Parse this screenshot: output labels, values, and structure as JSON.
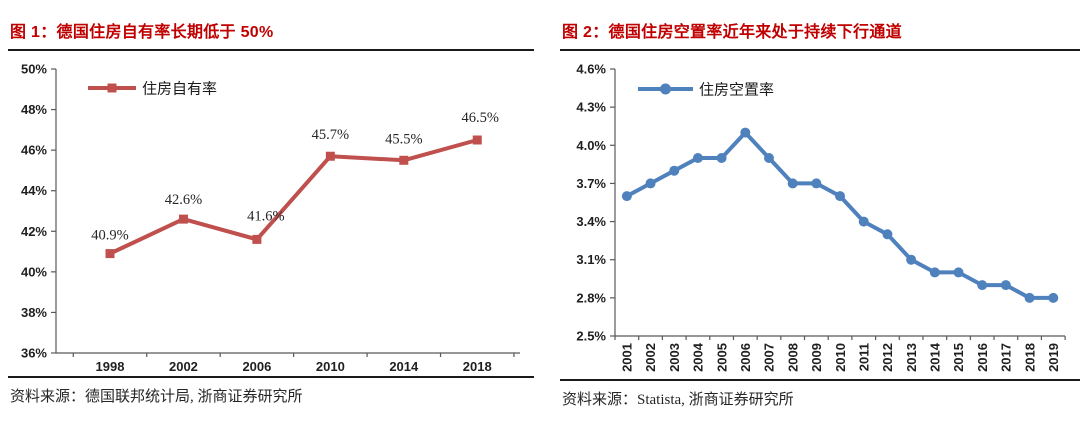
{
  "colors": {
    "title_red": "#C00000",
    "rule": "#1A1A1A",
    "axis": "#595959",
    "series_red": "#C0504D",
    "series_blue": "#4F81BD"
  },
  "figures": [
    {
      "title": "图 1：德国住房自有率长期低于 50%",
      "source": "资料来源：德国联邦统计局, 浙商证券研究所"
    },
    {
      "title": "图 2：德国住房空置率近年来处于持续下行通道",
      "source": "资料来源：Statista, 浙商证券研究所"
    }
  ],
  "chart_data": [
    {
      "type": "line",
      "title": "图 1：德国住房自有率长期低于 50%",
      "categories": [
        "1998",
        "2002",
        "2006",
        "2010",
        "2014",
        "2018"
      ],
      "series": [
        {
          "name": "住房自有率",
          "color": "#C0504D",
          "marker": "square",
          "values": [
            40.9,
            42.6,
            41.6,
            45.7,
            45.5,
            46.5
          ]
        }
      ],
      "data_labels": [
        "40.9%",
        "42.6%",
        "41.6%",
        "45.7%",
        "45.5%",
        "46.5%"
      ],
      "ylim": [
        36,
        50
      ],
      "ytick_step": 2,
      "y_decimals": 0,
      "y_unit": "%",
      "grid": false,
      "legend_position": "top-left",
      "x_label_rotation": 0
    },
    {
      "type": "line",
      "title": "图 2：德国住房空置率近年来处于持续下行通道",
      "categories": [
        "2001",
        "2002",
        "2003",
        "2004",
        "2005",
        "2006",
        "2007",
        "2008",
        "2009",
        "2010",
        "2011",
        "2012",
        "2013",
        "2014",
        "2015",
        "2016",
        "2017",
        "2018",
        "2019"
      ],
      "series": [
        {
          "name": "住房空置率",
          "color": "#4F81BD",
          "marker": "circle",
          "values": [
            3.6,
            3.7,
            3.8,
            3.9,
            3.9,
            4.1,
            3.9,
            3.7,
            3.7,
            3.6,
            3.4,
            3.3,
            3.1,
            3.0,
            3.0,
            2.9,
            2.9,
            2.8,
            2.8
          ]
        }
      ],
      "data_labels": null,
      "ylim": [
        2.5,
        4.6
      ],
      "ytick_step": 0.3,
      "y_decimals": 1,
      "y_unit": "%",
      "grid": false,
      "legend_position": "top-left",
      "x_label_rotation": -90
    }
  ]
}
